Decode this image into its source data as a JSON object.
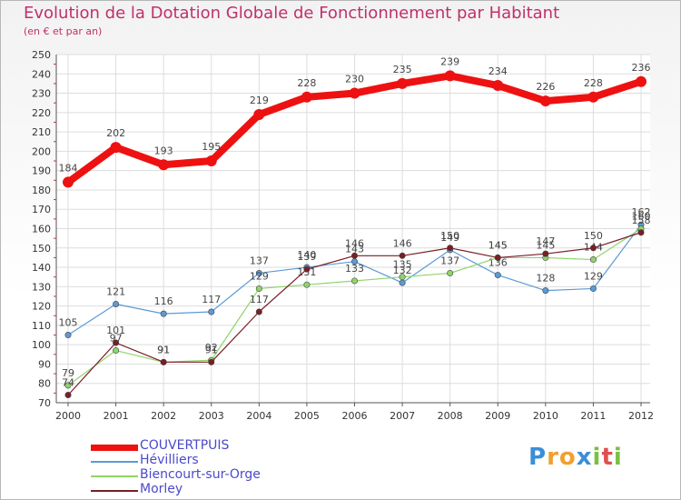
{
  "title": "Evolution de la Dotation Globale de Fonctionnement par Habitant",
  "subtitle": "(en € et par an)",
  "logo": {
    "text": "Proxiti",
    "letters": [
      {
        "ch": "P",
        "color": "#3a8fd6"
      },
      {
        "ch": "r",
        "color": "#f0a030"
      },
      {
        "ch": "o",
        "color": "#f0a030"
      },
      {
        "ch": "x",
        "color": "#3a8fd6"
      },
      {
        "ch": "i",
        "color": "#7ac043"
      },
      {
        "ch": "t",
        "color": "#e05050"
      },
      {
        "ch": "i",
        "color": "#7ac043"
      }
    ]
  },
  "chart_data": {
    "type": "line",
    "title": "Evolution de la Dotation Globale de Fonctionnement par Habitant",
    "subtitle": "(en € et par an)",
    "xlabel": "",
    "ylabel": "",
    "ylim": [
      70,
      250
    ],
    "ytick_step": 10,
    "grid": true,
    "legend_position": "bottom-left",
    "categories": [
      "2000",
      "2001",
      "2002",
      "2003",
      "2004",
      "2005",
      "2006",
      "2007",
      "2008",
      "2009",
      "2010",
      "2011",
      "2012"
    ],
    "series": [
      {
        "name": "Hévilliers",
        "color": "#5b9bd5",
        "labels": true,
        "values": [
          105,
          121,
          116,
          117,
          137,
          140,
          143,
          132,
          149,
          136,
          128,
          129,
          162
        ]
      },
      {
        "name": "Biencourt-sur-Orge",
        "color": "#8fd46a",
        "labels": true,
        "values": [
          79,
          97,
          91,
          92,
          129,
          131,
          133,
          135,
          137,
          145,
          145,
          144,
          160
        ]
      },
      {
        "name": "Morley",
        "color": "#7a1e26",
        "labels": true,
        "values": [
          74,
          101,
          91,
          91,
          117,
          139,
          146,
          146,
          150,
          145,
          147,
          150,
          158
        ]
      },
      {
        "name": "COUVERTPUIS",
        "color": "#ee1111",
        "labels": true,
        "values": [
          184,
          202,
          193,
          195,
          219,
          228,
          230,
          235,
          239,
          234,
          226,
          228,
          236
        ]
      }
    ],
    "legend_order": [
      "COUVERTPUIS",
      "Hévilliers",
      "Biencourt-sur-Orge",
      "Morley"
    ]
  }
}
